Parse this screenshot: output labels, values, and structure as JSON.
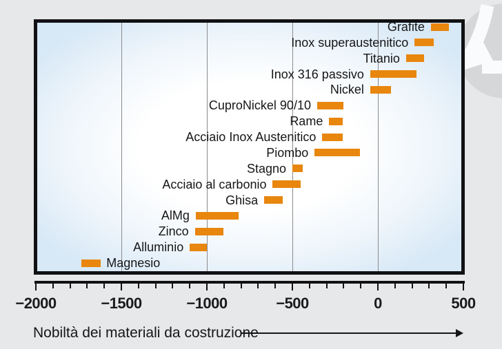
{
  "colors": {
    "background": "#e7e8e9",
    "bar": "#e8860e",
    "frame": "#111114",
    "gridline": "#8b8b8d",
    "plot_fill_center": "#ffffff",
    "plot_fill_edge": "#d7e8f6",
    "watermark_circle": "#d6d7d9",
    "watermark_arrow": "#fafbfc",
    "text": "#161617"
  },
  "watermark": {
    "icon": "circular-arrow-down-left-logo"
  },
  "caption": {
    "text": "Nobiltà dei materiali da costruzione",
    "arrow": "right-arrow"
  },
  "chart_data": {
    "type": "bar",
    "subtype": "horizontal-floating-range-bars",
    "title": "",
    "xlabel": "Nobiltà dei materiali da costruzione",
    "ylabel": "",
    "xlim": [
      -2000,
      500
    ],
    "x_major_ticks": [
      -2000,
      -1500,
      -1000,
      -500,
      0,
      500
    ],
    "x_tick_labels": [
      "−2000",
      "−1500",
      "−1000",
      "−500",
      "0",
      "500"
    ],
    "x_minor_tick_step": 100,
    "gridlines_at": [
      -1500,
      -1000,
      -500,
      0
    ],
    "grid": "vertical-only",
    "legend": "none",
    "bar_color": "#e8860e",
    "series": [
      {
        "label": "Grafite",
        "range": [
          310,
          415
        ],
        "label_side": "left"
      },
      {
        "label": "Inox superaustenitico",
        "range": [
          215,
          325
        ],
        "label_side": "left"
      },
      {
        "label": "Titanio",
        "range": [
          165,
          270
        ],
        "label_side": "left"
      },
      {
        "label": "Inox 316 passivo",
        "range": [
          -45,
          225
        ],
        "label_side": "left"
      },
      {
        "label": "Nickel",
        "range": [
          -45,
          75
        ],
        "label_side": "left"
      },
      {
        "label": "CuproNickel 90/10",
        "range": [
          -355,
          -200
        ],
        "label_side": "left"
      },
      {
        "label": "Rame",
        "range": [
          -285,
          -205
        ],
        "label_side": "left"
      },
      {
        "label": "Acciaio Inox Austenitico",
        "range": [
          -325,
          -205
        ],
        "label_side": "left"
      },
      {
        "label": "Piombo",
        "range": [
          -370,
          -105
        ],
        "label_side": "left"
      },
      {
        "label": "Stagno",
        "range": [
          -500,
          -440
        ],
        "label_side": "left"
      },
      {
        "label": "Acciaio al carbonio",
        "range": [
          -615,
          -450
        ],
        "label_side": "left"
      },
      {
        "label": "Ghisa",
        "range": [
          -665,
          -555
        ],
        "label_side": "left"
      },
      {
        "label": "AlMg",
        "range": [
          -1065,
          -815
        ],
        "label_side": "left"
      },
      {
        "label": "Zinco",
        "range": [
          -1070,
          -905
        ],
        "label_side": "left"
      },
      {
        "label": "Alluminio",
        "range": [
          -1100,
          -1000
        ],
        "label_side": "left"
      },
      {
        "label": "Magnesio",
        "range": [
          -1735,
          -1620
        ],
        "label_side": "right"
      }
    ]
  }
}
